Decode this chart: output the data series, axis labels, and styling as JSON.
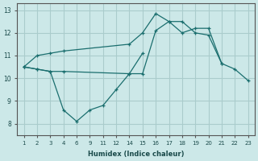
{
  "xlabel": "Humidex (Indice chaleur)",
  "background_color": "#cce8e8",
  "grid_color": "#aacccc",
  "line_color": "#1a6e6e",
  "xtick_labels": [
    "1",
    "2",
    "3",
    "4",
    "6",
    "9",
    "11",
    "12",
    "14",
    "15",
    "16",
    "17",
    "18",
    "19",
    "20",
    "21",
    "22",
    "23"
  ],
  "ytick_labels": [
    "8",
    "9",
    "10",
    "11",
    "12",
    "13"
  ],
  "ytick_vals": [
    8,
    9,
    10,
    11,
    12,
    13
  ],
  "ylim": [
    7.5,
    13.3
  ],
  "lines": [
    {
      "idx": [
        0,
        1,
        2,
        3,
        8,
        9,
        10,
        11,
        12,
        13,
        14,
        15
      ],
      "y": [
        10.5,
        11.0,
        11.1,
        11.2,
        11.5,
        12.0,
        12.85,
        12.5,
        12.5,
        12.0,
        11.9,
        10.65
      ]
    },
    {
      "idx": [
        0,
        1,
        2,
        3,
        8,
        9,
        10,
        11,
        12,
        13,
        14,
        15,
        16,
        17
      ],
      "y": [
        10.5,
        10.4,
        10.3,
        10.3,
        10.2,
        10.2,
        12.1,
        12.5,
        12.0,
        12.2,
        12.2,
        10.65,
        10.4,
        9.9
      ]
    },
    {
      "idx": [
        0,
        1,
        2,
        3,
        4,
        5,
        6,
        7,
        8,
        9
      ],
      "y": [
        10.5,
        10.4,
        10.3,
        8.6,
        8.1,
        8.6,
        8.8,
        9.5,
        10.2,
        11.1
      ]
    }
  ]
}
